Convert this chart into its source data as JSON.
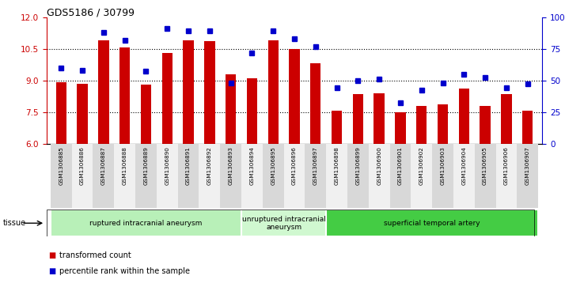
{
  "title": "GDS5186 / 30799",
  "samples": [
    "GSM1306885",
    "GSM1306886",
    "GSM1306887",
    "GSM1306888",
    "GSM1306889",
    "GSM1306890",
    "GSM1306891",
    "GSM1306892",
    "GSM1306893",
    "GSM1306894",
    "GSM1306895",
    "GSM1306896",
    "GSM1306897",
    "GSM1306898",
    "GSM1306899",
    "GSM1306900",
    "GSM1306901",
    "GSM1306902",
    "GSM1306903",
    "GSM1306904",
    "GSM1306905",
    "GSM1306906",
    "GSM1306907"
  ],
  "bar_values": [
    8.9,
    8.85,
    10.9,
    10.55,
    8.8,
    10.3,
    10.9,
    10.85,
    9.3,
    9.1,
    10.9,
    10.5,
    9.8,
    7.55,
    8.35,
    8.4,
    7.5,
    7.8,
    7.85,
    8.6,
    7.8,
    8.35,
    7.55
  ],
  "percentile_values": [
    60,
    58,
    88,
    82,
    57,
    91,
    89,
    89,
    48,
    72,
    89,
    83,
    77,
    44,
    50,
    51,
    32,
    42,
    48,
    55,
    52,
    44,
    47
  ],
  "bar_color": "#cc0000",
  "dot_color": "#0000cc",
  "ylim_left": [
    6,
    12
  ],
  "ylim_right": [
    0,
    100
  ],
  "yticks_left": [
    6,
    7.5,
    9,
    10.5,
    12
  ],
  "yticks_right": [
    0,
    25,
    50,
    75,
    100
  ],
  "groups": [
    {
      "label": "ruptured intracranial aneurysm",
      "start": 0,
      "end": 9,
      "color": "#b8f0b8"
    },
    {
      "label": "unruptured intracranial\naneurysm",
      "start": 9,
      "end": 13,
      "color": "#d0f8d0"
    },
    {
      "label": "superficial temporal artery",
      "start": 13,
      "end": 23,
      "color": "#44cc44"
    }
  ],
  "tissue_label": "tissue",
  "legend_bar_label": "transformed count",
  "legend_dot_label": "percentile rank within the sample",
  "fig_bg_color": "#ffffff",
  "plot_bg_color": "#ffffff",
  "xtick_bg_colors": [
    "#d8d8d8",
    "#f0f0f0"
  ]
}
